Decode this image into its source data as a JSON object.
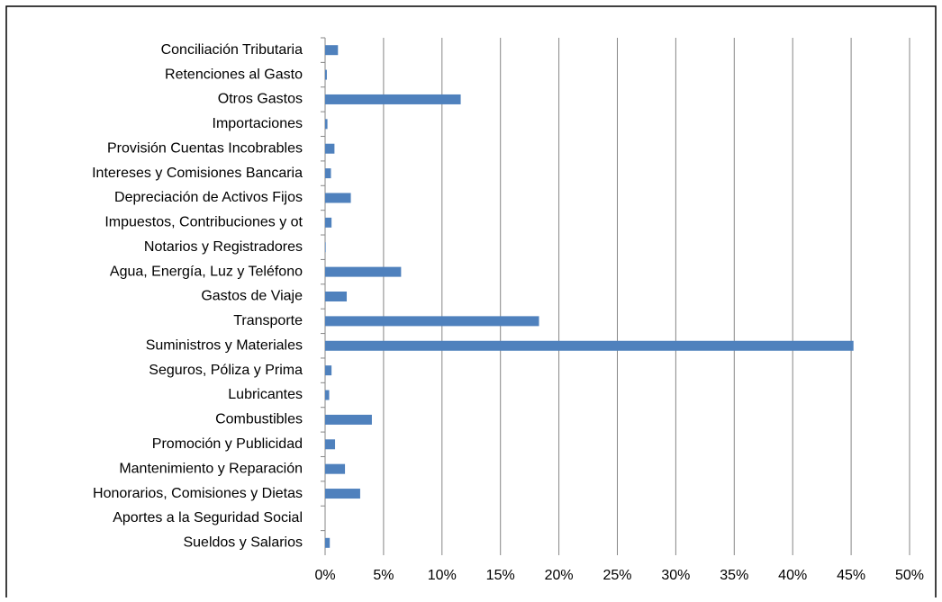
{
  "chart_data": {
    "type": "bar",
    "orientation": "horizontal",
    "categories": [
      "Conciliación Tributaria",
      "Retenciones al Gasto",
      "Otros Gastos",
      "Importaciones",
      "Provisión Cuentas Incobrables",
      "Intereses y Comisiones Bancaria",
      "Depreciación de Activos Fijos",
      "Impuestos, Contribuciones y ot",
      "Notarios y Registradores",
      "Agua, Energía, Luz y Teléfono",
      "Gastos de Viaje",
      "Transporte",
      "Suministros y Materiales",
      "Seguros, Póliza y Prima",
      "Lubricantes",
      "Combustibles",
      "Promoción y Publicidad",
      "Mantenimiento y Reparación",
      "Honorarios, Comisiones y Dietas",
      "Aportes a la Seguridad Social",
      "Sueldos y Salarios"
    ],
    "values": [
      1.1,
      0.15,
      11.6,
      0.2,
      0.8,
      0.5,
      2.2,
      0.55,
      0.05,
      6.5,
      1.85,
      18.3,
      45.2,
      0.55,
      0.35,
      4.0,
      0.85,
      1.7,
      3.0,
      0.0,
      0.4
    ],
    "color": "#4f81bd",
    "xlim": [
      0,
      50
    ],
    "xticks": [
      {
        "value": 0,
        "label": "0%"
      },
      {
        "value": 5,
        "label": "5%"
      },
      {
        "value": 10,
        "label": "10%"
      },
      {
        "value": 15,
        "label": "15%"
      },
      {
        "value": 20,
        "label": "20%"
      },
      {
        "value": 25,
        "label": "25%"
      },
      {
        "value": 30,
        "label": "30%"
      },
      {
        "value": 35,
        "label": "35%"
      },
      {
        "value": 40,
        "label": "40%"
      },
      {
        "value": 45,
        "label": "45%"
      },
      {
        "value": 50,
        "label": "50%"
      }
    ],
    "grid": true
  }
}
